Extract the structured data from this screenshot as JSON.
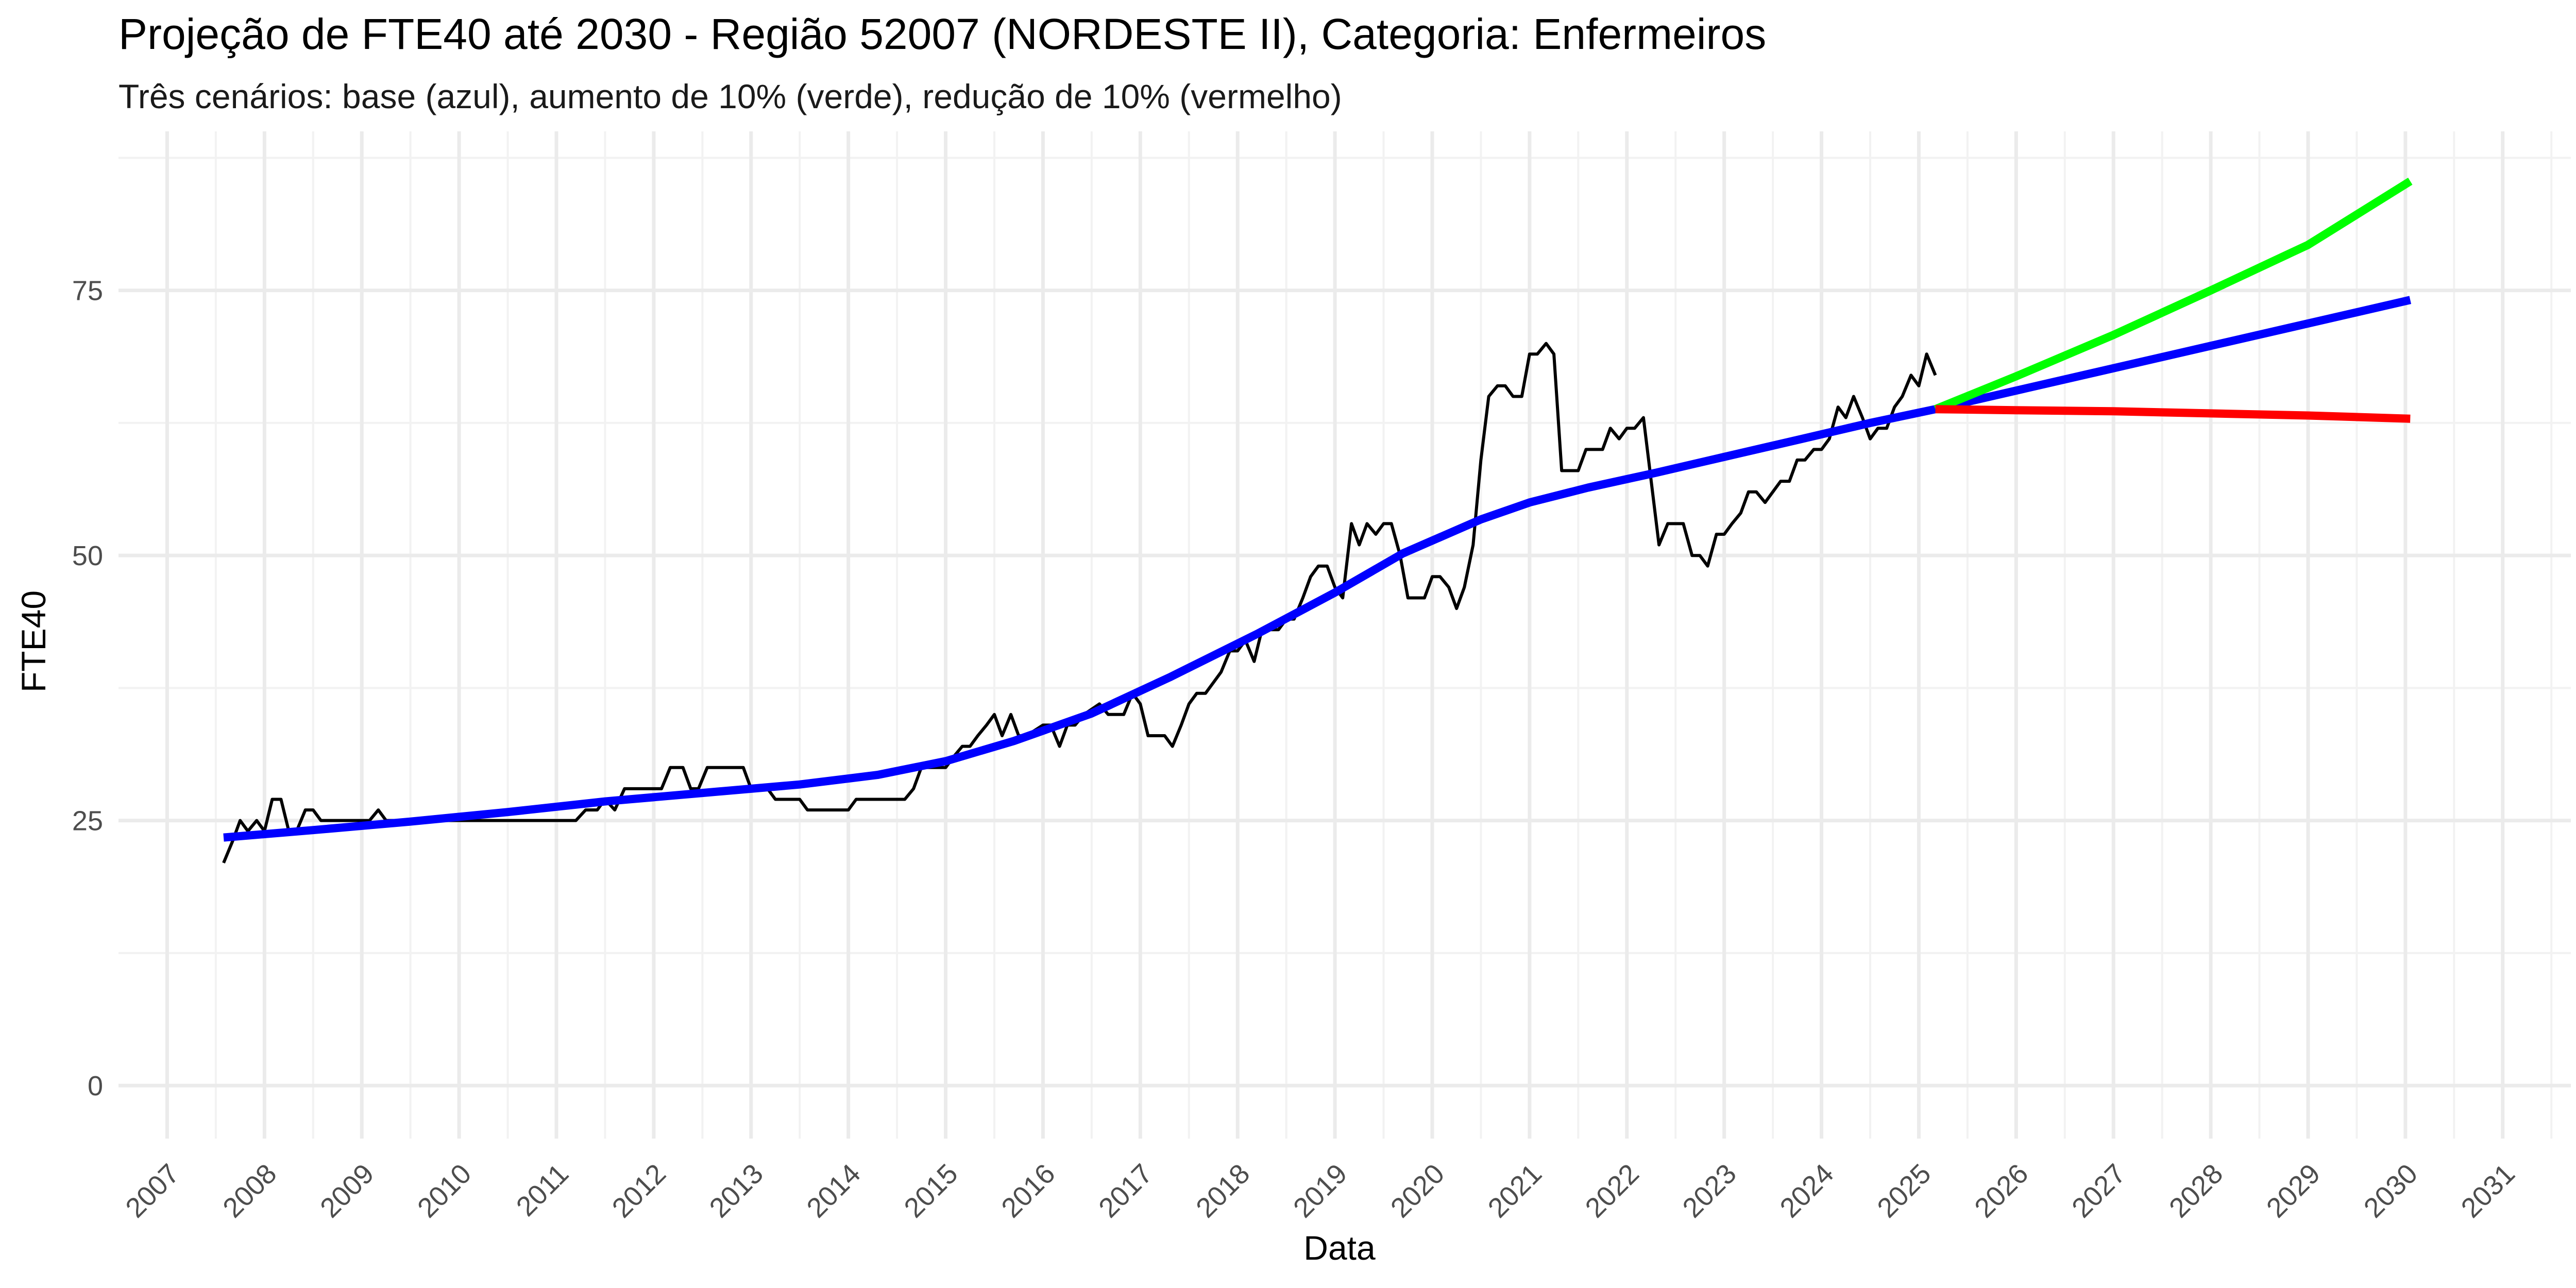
{
  "chart_data": {
    "type": "line",
    "title": "Projeção de FTE40 até 2030 - Região 52007 (NORDESTE II), Categoria: Enfermeiros",
    "subtitle": "Três cenários: base (azul), aumento de 10% (verde), redução de 10% (vermelho)",
    "xlabel": "Data",
    "ylabel": "FTE40",
    "xlim": [
      2006.5,
      2031.7
    ],
    "ylim": [
      -5,
      90
    ],
    "y_ticks": [
      0,
      25,
      50,
      75
    ],
    "y_tick_labels": [
      "0",
      "25",
      "50",
      "75"
    ],
    "x_ticks": [
      2007,
      2008,
      2009,
      2010,
      2011,
      2012,
      2013,
      2014,
      2015,
      2016,
      2017,
      2018,
      2019,
      2020,
      2021,
      2022,
      2023,
      2024,
      2025,
      2026,
      2027,
      2028,
      2029,
      2030,
      2031
    ],
    "x_tick_labels": [
      "2007",
      "2008",
      "2009",
      "2010",
      "2011",
      "2012",
      "2013",
      "2014",
      "2015",
      "2016",
      "2017",
      "2018",
      "2019",
      "2020",
      "2021",
      "2022",
      "2023",
      "2024",
      "2025",
      "2026",
      "2027",
      "2028",
      "2029",
      "2030",
      "2031"
    ],
    "grid": true,
    "legend": "none",
    "series": [
      {
        "color": "#000000",
        "line_width": "thin",
        "points": [
          [
            2007.58,
            21
          ],
          [
            2007.67,
            23
          ],
          [
            2007.75,
            25
          ],
          [
            2007.83,
            24
          ],
          [
            2007.92,
            25
          ],
          [
            2008.0,
            24
          ],
          [
            2008.08,
            27
          ],
          [
            2008.17,
            27
          ],
          [
            2008.25,
            24
          ],
          [
            2008.33,
            24
          ],
          [
            2008.42,
            26
          ],
          [
            2008.5,
            26
          ],
          [
            2008.58,
            25
          ],
          [
            2008.67,
            25
          ],
          [
            2008.83,
            25
          ],
          [
            2009.0,
            25
          ],
          [
            2009.08,
            25
          ],
          [
            2009.17,
            26
          ],
          [
            2009.25,
            25
          ],
          [
            2009.5,
            25
          ],
          [
            2010.0,
            25
          ],
          [
            2010.5,
            25
          ],
          [
            2011.0,
            25
          ],
          [
            2011.2,
            25
          ],
          [
            2011.3,
            26
          ],
          [
            2011.42,
            26
          ],
          [
            2011.5,
            27
          ],
          [
            2011.6,
            26
          ],
          [
            2011.7,
            28
          ],
          [
            2011.85,
            28
          ],
          [
            2012.0,
            28
          ],
          [
            2012.08,
            28
          ],
          [
            2012.17,
            30
          ],
          [
            2012.3,
            30
          ],
          [
            2012.38,
            28
          ],
          [
            2012.46,
            28
          ],
          [
            2012.55,
            30
          ],
          [
            2012.7,
            30
          ],
          [
            2012.85,
            30
          ],
          [
            2012.92,
            30
          ],
          [
            2013.0,
            28
          ],
          [
            2013.17,
            28
          ],
          [
            2013.25,
            27
          ],
          [
            2013.42,
            27
          ],
          [
            2013.5,
            27
          ],
          [
            2013.58,
            26
          ],
          [
            2013.75,
            26
          ],
          [
            2013.92,
            26
          ],
          [
            2014.0,
            26
          ],
          [
            2014.08,
            27
          ],
          [
            2014.25,
            27
          ],
          [
            2014.42,
            27
          ],
          [
            2014.5,
            27
          ],
          [
            2014.58,
            27
          ],
          [
            2014.67,
            28
          ],
          [
            2014.75,
            30
          ],
          [
            2014.92,
            30
          ],
          [
            2015.0,
            30
          ],
          [
            2015.08,
            31
          ],
          [
            2015.17,
            32
          ],
          [
            2015.25,
            32
          ],
          [
            2015.33,
            33
          ],
          [
            2015.42,
            34
          ],
          [
            2015.5,
            35
          ],
          [
            2015.58,
            33
          ],
          [
            2015.67,
            35
          ],
          [
            2015.75,
            33
          ],
          [
            2015.83,
            33
          ],
          [
            2016.0,
            34
          ],
          [
            2016.08,
            34
          ],
          [
            2016.17,
            32
          ],
          [
            2016.25,
            34
          ],
          [
            2016.33,
            34
          ],
          [
            2016.42,
            35
          ],
          [
            2016.58,
            36
          ],
          [
            2016.67,
            35
          ],
          [
            2016.83,
            35
          ],
          [
            2016.92,
            37
          ],
          [
            2017.0,
            36
          ],
          [
            2017.08,
            33
          ],
          [
            2017.25,
            33
          ],
          [
            2017.33,
            32
          ],
          [
            2017.42,
            34
          ],
          [
            2017.5,
            36
          ],
          [
            2017.58,
            37
          ],
          [
            2017.67,
            37
          ],
          [
            2017.75,
            38
          ],
          [
            2017.83,
            39
          ],
          [
            2017.92,
            41
          ],
          [
            2018.0,
            41
          ],
          [
            2018.08,
            42
          ],
          [
            2018.17,
            40
          ],
          [
            2018.25,
            43
          ],
          [
            2018.33,
            43
          ],
          [
            2018.42,
            43
          ],
          [
            2018.5,
            44
          ],
          [
            2018.58,
            44
          ],
          [
            2018.67,
            46
          ],
          [
            2018.75,
            48
          ],
          [
            2018.83,
            49
          ],
          [
            2018.92,
            49
          ],
          [
            2019.0,
            47
          ],
          [
            2019.08,
            46
          ],
          [
            2019.17,
            53
          ],
          [
            2019.25,
            51
          ],
          [
            2019.33,
            53
          ],
          [
            2019.42,
            52
          ],
          [
            2019.5,
            53
          ],
          [
            2019.58,
            53
          ],
          [
            2019.67,
            50
          ],
          [
            2019.75,
            46
          ],
          [
            2019.83,
            46
          ],
          [
            2019.92,
            46
          ],
          [
            2020.0,
            48
          ],
          [
            2020.08,
            48
          ],
          [
            2020.17,
            47
          ],
          [
            2020.25,
            45
          ],
          [
            2020.33,
            47
          ],
          [
            2020.42,
            51
          ],
          [
            2020.5,
            59
          ],
          [
            2020.58,
            65
          ],
          [
            2020.67,
            66
          ],
          [
            2020.75,
            66
          ],
          [
            2020.83,
            65
          ],
          [
            2020.92,
            65
          ],
          [
            2021.0,
            69
          ],
          [
            2021.08,
            69
          ],
          [
            2021.17,
            70
          ],
          [
            2021.25,
            69
          ],
          [
            2021.33,
            58
          ],
          [
            2021.42,
            58
          ],
          [
            2021.5,
            58
          ],
          [
            2021.58,
            60
          ],
          [
            2021.67,
            60
          ],
          [
            2021.75,
            60
          ],
          [
            2021.83,
            62
          ],
          [
            2021.92,
            61
          ],
          [
            2022.0,
            62
          ],
          [
            2022.08,
            62
          ],
          [
            2022.17,
            63
          ],
          [
            2022.25,
            57
          ],
          [
            2022.33,
            51
          ],
          [
            2022.42,
            53
          ],
          [
            2022.5,
            53
          ],
          [
            2022.58,
            53
          ],
          [
            2022.67,
            50
          ],
          [
            2022.75,
            50
          ],
          [
            2022.83,
            49
          ],
          [
            2022.92,
            52
          ],
          [
            2023.0,
            52
          ],
          [
            2023.08,
            53
          ],
          [
            2023.17,
            54
          ],
          [
            2023.25,
            56
          ],
          [
            2023.33,
            56
          ],
          [
            2023.42,
            55
          ],
          [
            2023.5,
            56
          ],
          [
            2023.58,
            57
          ],
          [
            2023.67,
            57
          ],
          [
            2023.75,
            59
          ],
          [
            2023.83,
            59
          ],
          [
            2023.92,
            60
          ],
          [
            2024.0,
            60
          ],
          [
            2024.08,
            61
          ],
          [
            2024.17,
            64
          ],
          [
            2024.25,
            63
          ],
          [
            2024.33,
            65
          ],
          [
            2024.42,
            63
          ],
          [
            2024.5,
            61
          ],
          [
            2024.58,
            62
          ],
          [
            2024.67,
            62
          ],
          [
            2024.75,
            64
          ],
          [
            2024.83,
            65
          ],
          [
            2024.92,
            67
          ],
          [
            2025.0,
            66
          ],
          [
            2025.08,
            69
          ],
          [
            2025.17,
            67
          ]
        ]
      },
      {
        "color": "#0000ff",
        "line_width": "thick",
        "points": [
          [
            2007.58,
            23.4
          ],
          [
            2008.5,
            24.1
          ],
          [
            2009.5,
            24.9
          ],
          [
            2010.5,
            25.8
          ],
          [
            2011.5,
            26.8
          ],
          [
            2012.5,
            27.6
          ],
          [
            2013.5,
            28.4
          ],
          [
            2014.3,
            29.3
          ],
          [
            2015.0,
            30.6
          ],
          [
            2015.7,
            32.5
          ],
          [
            2016.5,
            35.1
          ],
          [
            2017.3,
            38.5
          ],
          [
            2018.2,
            42.6
          ],
          [
            2019.0,
            46.5
          ],
          [
            2019.7,
            50.2
          ],
          [
            2020.5,
            53.4
          ],
          [
            2021.0,
            55.0
          ],
          [
            2021.6,
            56.4
          ],
          [
            2022.3,
            57.8
          ],
          [
            2023.0,
            59.3
          ],
          [
            2023.8,
            61.0
          ],
          [
            2024.5,
            62.5
          ],
          [
            2025.17,
            63.8
          ]
        ]
      },
      {
        "color": "#0000ff",
        "line_width": "thick",
        "points": [
          [
            2025.17,
            63.8
          ],
          [
            2030.05,
            74.1
          ]
        ]
      },
      {
        "color": "#00ff00",
        "line_width": "thick",
        "points": [
          [
            2025.17,
            63.8
          ],
          [
            2026.0,
            66.9
          ],
          [
            2027.0,
            70.8
          ],
          [
            2028.0,
            75.0
          ],
          [
            2029.0,
            79.3
          ],
          [
            2030.05,
            85.3
          ]
        ]
      },
      {
        "color": "#ff0000",
        "line_width": "thick",
        "points": [
          [
            2025.17,
            63.8
          ],
          [
            2026.0,
            63.7
          ],
          [
            2027.0,
            63.6
          ],
          [
            2028.0,
            63.4
          ],
          [
            2029.0,
            63.2
          ],
          [
            2030.05,
            62.9
          ]
        ]
      }
    ]
  }
}
